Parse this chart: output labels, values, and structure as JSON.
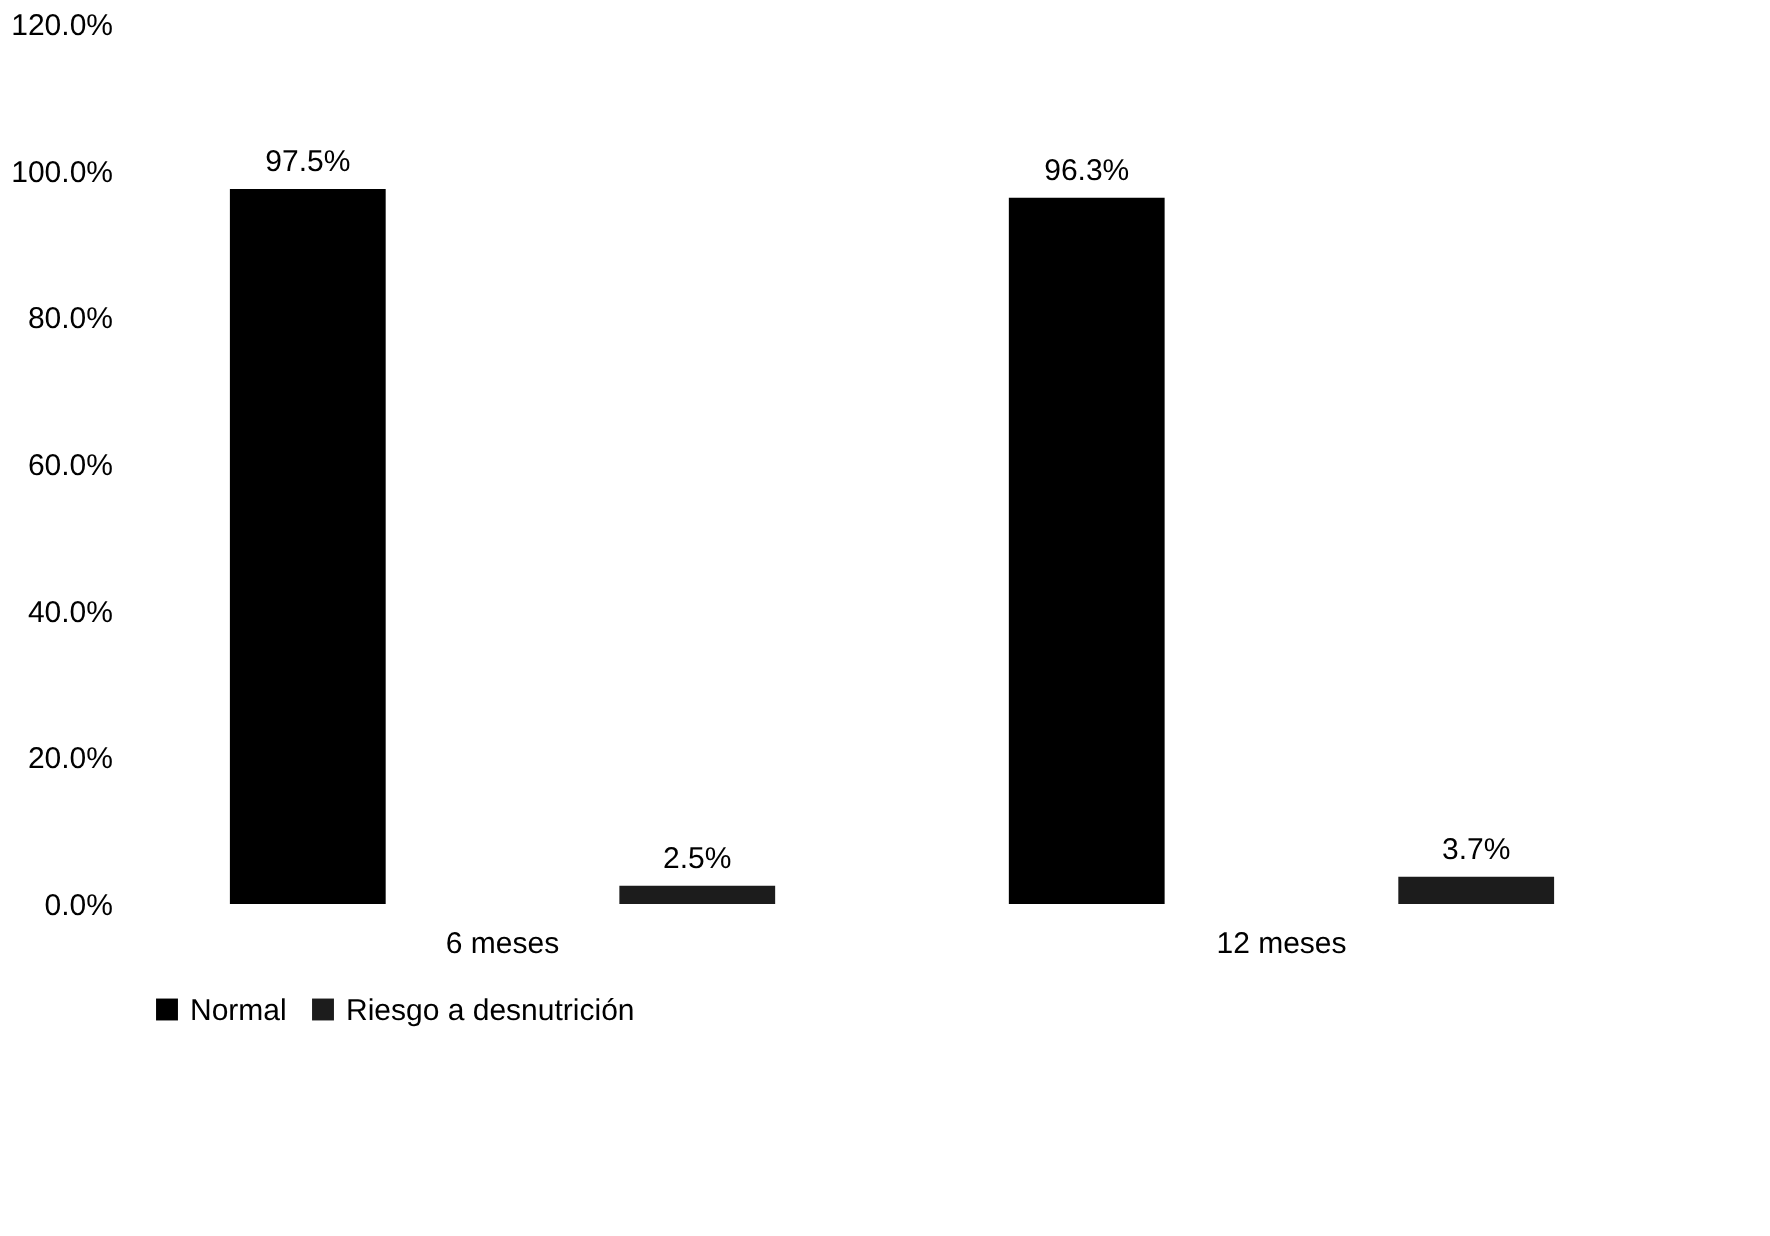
{
  "chart_data": {
    "type": "bar",
    "categories": [
      "6 meses",
      "12 meses"
    ],
    "series": [
      {
        "name": "Normal",
        "color": "#000000",
        "values": [
          97.5,
          96.3
        ],
        "value_labels": [
          "97.5%",
          "96.3%"
        ]
      },
      {
        "name": "Riesgo  a desnutrición",
        "color": "#1c1c1c",
        "values": [
          2.5,
          3.7
        ],
        "value_labels": [
          "2.5%",
          "3.7%"
        ]
      }
    ],
    "ylim": [
      0,
      120
    ],
    "yticks": [
      {
        "value": 0,
        "label": "0.0%"
      },
      {
        "value": 20,
        "label": "20.0%"
      },
      {
        "value": 40,
        "label": "40.0%"
      },
      {
        "value": 60,
        "label": "60.0%"
      },
      {
        "value": 80,
        "label": "80.0%"
      },
      {
        "value": 100,
        "label": "100.0%"
      },
      {
        "value": 120,
        "label": "120.0%"
      }
    ],
    "grid": false,
    "legend": "bottom"
  }
}
